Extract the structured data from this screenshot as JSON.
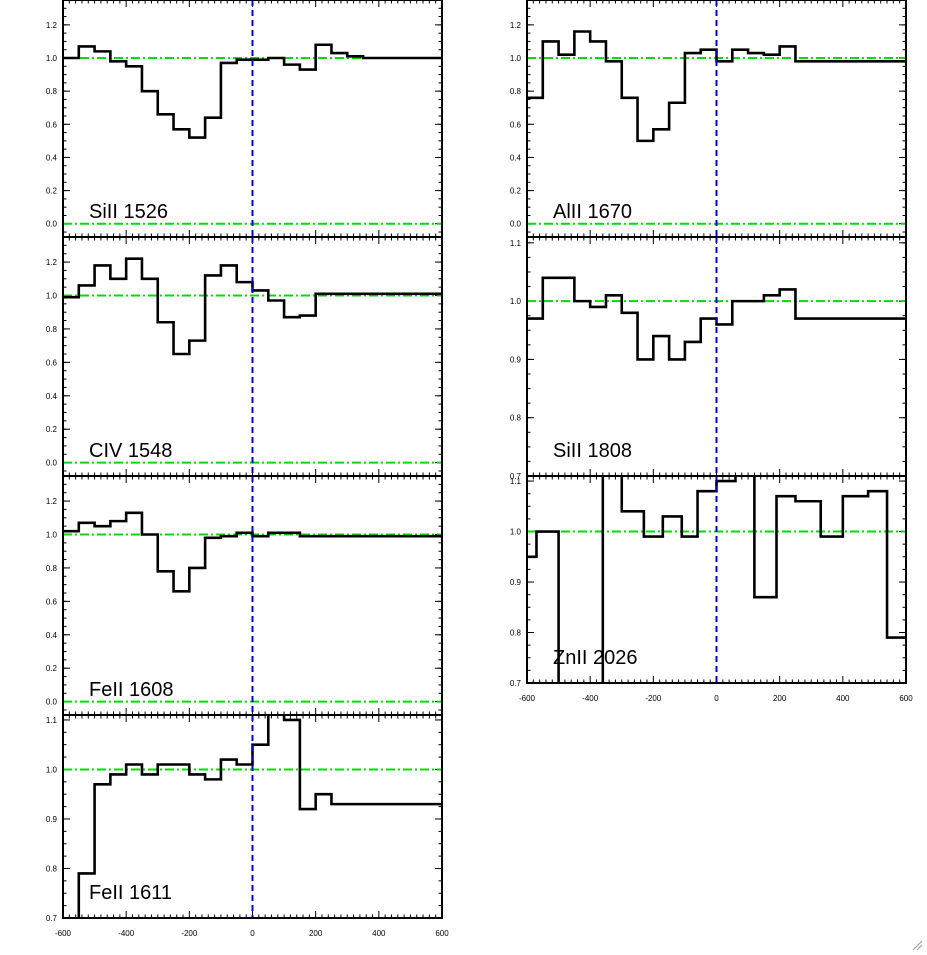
{
  "colors": {
    "background": "#ffffff",
    "spectrum": "#000000",
    "continuum": "#00dd00",
    "zero_velocity": "#0000dd"
  },
  "chart_data": [
    {
      "type": "line",
      "label": "SiII 1526",
      "xlim": [
        -600,
        600
      ],
      "ylim": [
        -0.08,
        1.35
      ],
      "yticks": [
        0.0,
        0.2,
        0.4,
        0.6,
        0.8,
        1.0,
        1.2
      ],
      "ytick_labels": [
        "0.0",
        "0.2",
        "0.4",
        "0.6",
        "0.8",
        "1.0",
        "1.2"
      ],
      "continuum": 1.0,
      "zero_level": 0.0,
      "series": [
        {
          "x": [
            -600,
            -550,
            -500,
            -450,
            -400,
            -350,
            -300,
            -250,
            -200,
            -150,
            -100,
            -50,
            0,
            50,
            100,
            150,
            200,
            250,
            300,
            350,
            400,
            450,
            500,
            550
          ],
          "y": [
            1.0,
            1.07,
            1.04,
            0.98,
            0.95,
            0.8,
            0.66,
            0.57,
            0.52,
            0.64,
            0.97,
            0.99,
            0.99,
            1.0,
            0.96,
            0.93,
            1.08,
            1.03,
            1.01,
            1.0,
            1.0,
            1.0,
            1.0,
            1.0
          ]
        }
      ]
    },
    {
      "type": "line",
      "label": "CIV 1548",
      "xlim": [
        -600,
        600
      ],
      "ylim": [
        -0.08,
        1.35
      ],
      "yticks": [
        0.0,
        0.2,
        0.4,
        0.6,
        0.8,
        1.0,
        1.2
      ],
      "ytick_labels": [
        "0.0",
        "0.2",
        "0.4",
        "0.6",
        "0.8",
        "1.0",
        "1.2"
      ],
      "continuum": 1.0,
      "zero_level": 0.0,
      "series": [
        {
          "x": [
            -600,
            -550,
            -500,
            -450,
            -400,
            -350,
            -300,
            -250,
            -200,
            -150,
            -100,
            -50,
            0,
            50,
            100,
            150,
            200,
            250,
            300,
            350,
            400,
            450,
            500,
            550
          ],
          "y": [
            0.99,
            1.06,
            1.18,
            1.1,
            1.22,
            1.1,
            0.84,
            0.65,
            0.73,
            1.12,
            1.18,
            1.08,
            1.03,
            0.97,
            0.87,
            0.88,
            1.01,
            1.01,
            1.01,
            1.01,
            1.01,
            1.01,
            1.01,
            1.01
          ]
        }
      ]
    },
    {
      "type": "line",
      "label": "FeII 1608",
      "xlim": [
        -600,
        600
      ],
      "ylim": [
        -0.08,
        1.35
      ],
      "yticks": [
        0.0,
        0.2,
        0.4,
        0.6,
        0.8,
        1.0,
        1.2
      ],
      "ytick_labels": [
        "0.0",
        "0.2",
        "0.4",
        "0.6",
        "0.8",
        "1.0",
        "1.2"
      ],
      "continuum": 1.0,
      "zero_level": 0.0,
      "series": [
        {
          "x": [
            -600,
            -550,
            -500,
            -450,
            -400,
            -350,
            -300,
            -250,
            -200,
            -150,
            -100,
            -50,
            0,
            50,
            100,
            150,
            200,
            250,
            300,
            350,
            400,
            450,
            500,
            550
          ],
          "y": [
            1.02,
            1.07,
            1.05,
            1.08,
            1.13,
            1.0,
            0.78,
            0.66,
            0.8,
            0.98,
            0.99,
            1.01,
            0.99,
            1.01,
            1.01,
            0.99,
            0.99,
            0.99,
            0.99,
            0.99,
            0.99,
            0.99,
            0.99,
            0.99
          ]
        }
      ]
    },
    {
      "type": "line",
      "label": "FeII 1611",
      "xlim": [
        -600,
        600
      ],
      "ylim": [
        0.7,
        1.11
      ],
      "yticks": [
        0.7,
        0.8,
        0.9,
        1.0,
        1.1
      ],
      "ytick_labels": [
        "0.7",
        "0.8",
        "0.9",
        "1.0",
        "1.1"
      ],
      "continuum": 1.0,
      "xticks": [
        -600,
        -400,
        -200,
        0,
        200,
        400,
        600
      ],
      "xtick_labels": [
        "-600",
        "-400",
        "-200",
        "0",
        "200",
        "400",
        "600"
      ],
      "series": [
        {
          "x": [
            -600,
            -550,
            -500,
            -450,
            -400,
            -350,
            -300,
            -250,
            -200,
            -150,
            -100,
            -50,
            0,
            50,
            100,
            150,
            200,
            250,
            300,
            350,
            400,
            450,
            500,
            550
          ],
          "y": [
            0.65,
            0.79,
            0.97,
            0.99,
            1.01,
            0.99,
            1.01,
            1.01,
            0.99,
            0.98,
            1.02,
            1.01,
            1.05,
            1.12,
            1.1,
            0.92,
            0.95,
            0.93,
            0.93,
            0.93,
            0.93,
            0.93,
            0.93,
            0.93
          ]
        }
      ]
    },
    {
      "type": "line",
      "label": "AlII 1670",
      "xlim": [
        -600,
        600
      ],
      "ylim": [
        -0.08,
        1.35
      ],
      "yticks": [
        0.0,
        0.2,
        0.4,
        0.6,
        0.8,
        1.0,
        1.2
      ],
      "ytick_labels": [
        "0.0",
        "0.2",
        "0.4",
        "0.6",
        "0.8",
        "1.0",
        "1.2"
      ],
      "continuum": 1.0,
      "zero_level": 0.0,
      "series": [
        {
          "x": [
            -600,
            -550,
            -500,
            -450,
            -400,
            -350,
            -300,
            -250,
            -200,
            -150,
            -100,
            -50,
            0,
            50,
            100,
            150,
            200,
            250,
            300,
            350,
            400,
            450,
            500,
            550
          ],
          "y": [
            0.76,
            1.1,
            1.02,
            1.16,
            1.1,
            0.98,
            0.76,
            0.5,
            0.57,
            0.73,
            1.03,
            1.05,
            0.98,
            1.05,
            1.03,
            1.02,
            1.07,
            0.98,
            0.98,
            0.98,
            0.98,
            0.98,
            0.98,
            0.98
          ]
        }
      ]
    },
    {
      "type": "line",
      "label": "SiII 1808",
      "xlim": [
        -600,
        600
      ],
      "ylim": [
        0.7,
        1.11
      ],
      "yticks": [
        0.7,
        0.8,
        0.9,
        1.0,
        1.1
      ],
      "ytick_labels": [
        "0.7",
        "0.8",
        "0.9",
        "1.0",
        "1.1"
      ],
      "continuum": 1.0,
      "series": [
        {
          "x": [
            -600,
            -550,
            -500,
            -450,
            -400,
            -350,
            -300,
            -250,
            -200,
            -150,
            -100,
            -50,
            0,
            50,
            100,
            150,
            200,
            250,
            300,
            350,
            400,
            450,
            500,
            550
          ],
          "y": [
            0.97,
            1.04,
            1.04,
            1.0,
            0.99,
            1.01,
            0.98,
            0.9,
            0.94,
            0.9,
            0.93,
            0.97,
            0.96,
            1.0,
            1.0,
            1.01,
            1.02,
            0.97,
            0.97,
            0.97,
            0.97,
            0.97,
            0.97,
            0.97
          ]
        }
      ]
    },
    {
      "type": "line",
      "label": "ZnII 2026",
      "xlim": [
        -600,
        600
      ],
      "ylim": [
        0.7,
        1.11
      ],
      "yticks": [
        0.7,
        0.8,
        0.9,
        1.0,
        1.1
      ],
      "ytick_labels": [
        "0.7",
        "0.8",
        "0.9",
        "1.0",
        "1.1"
      ],
      "continuum": 1.0,
      "xticks": [
        -600,
        -400,
        -200,
        0,
        200,
        400,
        600
      ],
      "xtick_labels": [
        "-600",
        "-400",
        "-200",
        "0",
        "200",
        "400",
        "600"
      ],
      "series": [
        {
          "x": [
            -600,
            -570,
            -500,
            -430,
            -360,
            -300,
            -230,
            -170,
            -110,
            -60,
            0,
            60,
            120,
            190,
            250,
            330,
            400,
            480,
            540,
            560
          ],
          "y": [
            0.95,
            1.0,
            0.5,
            0.5,
            1.14,
            1.04,
            0.99,
            1.03,
            0.99,
            1.08,
            1.1,
            1.14,
            0.87,
            1.07,
            1.06,
            0.99,
            1.07,
            1.08,
            0.79,
            0.79
          ]
        }
      ]
    }
  ]
}
